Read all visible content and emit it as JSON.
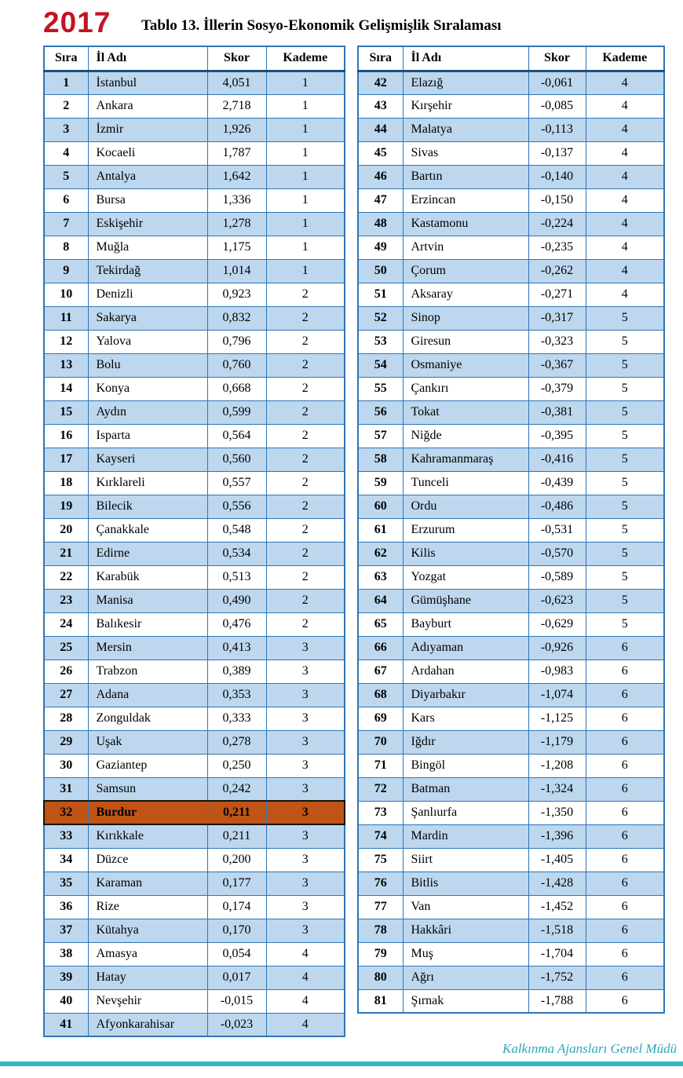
{
  "page": {
    "year": "2017",
    "title": "Tablo 13. İllerin Sosyo-Ekonomik Gelişmişlik Sıralaması",
    "footer_credit": "Kalkınma Ajansları Genel Müdü"
  },
  "colors": {
    "year_red": "#c31422",
    "table_border_blue": "#2e75b6",
    "shaded_row_blue": "#bdd7ee",
    "highlight_orange": "#c05316",
    "footer_teal": "#2aa9b8"
  },
  "columns": [
    "Sıra",
    "İl Adı",
    "Skor",
    "Kademe"
  ],
  "highlight_rank": 32,
  "left_rows": [
    [
      "1",
      "İstanbul",
      "4,051",
      "1"
    ],
    [
      "2",
      "Ankara",
      "2,718",
      "1"
    ],
    [
      "3",
      "İzmir",
      "1,926",
      "1"
    ],
    [
      "4",
      "Kocaeli",
      "1,787",
      "1"
    ],
    [
      "5",
      "Antalya",
      "1,642",
      "1"
    ],
    [
      "6",
      "Bursa",
      "1,336",
      "1"
    ],
    [
      "7",
      "Eskişehir",
      "1,278",
      "1"
    ],
    [
      "8",
      "Muğla",
      "1,175",
      "1"
    ],
    [
      "9",
      "Tekirdağ",
      "1,014",
      "1"
    ],
    [
      "10",
      "Denizli",
      "0,923",
      "2"
    ],
    [
      "11",
      "Sakarya",
      "0,832",
      "2"
    ],
    [
      "12",
      "Yalova",
      "0,796",
      "2"
    ],
    [
      "13",
      "Bolu",
      "0,760",
      "2"
    ],
    [
      "14",
      "Konya",
      "0,668",
      "2"
    ],
    [
      "15",
      "Aydın",
      "0,599",
      "2"
    ],
    [
      "16",
      "Isparta",
      "0,564",
      "2"
    ],
    [
      "17",
      "Kayseri",
      "0,560",
      "2"
    ],
    [
      "18",
      "Kırklareli",
      "0,557",
      "2"
    ],
    [
      "19",
      "Bilecik",
      "0,556",
      "2"
    ],
    [
      "20",
      "Çanakkale",
      "0,548",
      "2"
    ],
    [
      "21",
      "Edirne",
      "0,534",
      "2"
    ],
    [
      "22",
      "Karabük",
      "0,513",
      "2"
    ],
    [
      "23",
      "Manisa",
      "0,490",
      "2"
    ],
    [
      "24",
      "Balıkesir",
      "0,476",
      "2"
    ],
    [
      "25",
      "Mersin",
      "0,413",
      "3"
    ],
    [
      "26",
      "Trabzon",
      "0,389",
      "3"
    ],
    [
      "27",
      "Adana",
      "0,353",
      "3"
    ],
    [
      "28",
      "Zonguldak",
      "0,333",
      "3"
    ],
    [
      "29",
      "Uşak",
      "0,278",
      "3"
    ],
    [
      "30",
      "Gaziantep",
      "0,250",
      "3"
    ],
    [
      "31",
      "Samsun",
      "0,242",
      "3"
    ],
    [
      "32",
      "Burdur",
      "0,211",
      "3"
    ],
    [
      "33",
      "Kırıkkale",
      "0,211",
      "3"
    ],
    [
      "34",
      "Düzce",
      "0,200",
      "3"
    ],
    [
      "35",
      "Karaman",
      "0,177",
      "3"
    ],
    [
      "36",
      "Rize",
      "0,174",
      "3"
    ],
    [
      "37",
      "Kütahya",
      "0,170",
      "3"
    ],
    [
      "38",
      "Amasya",
      "0,054",
      "4"
    ],
    [
      "39",
      "Hatay",
      "0,017",
      "4"
    ],
    [
      "40",
      "Nevşehir",
      "-0,015",
      "4"
    ],
    [
      "41",
      "Afyonkarahisar",
      "-0,023",
      "4"
    ]
  ],
  "right_rows": [
    [
      "42",
      "Elazığ",
      "-0,061",
      "4"
    ],
    [
      "43",
      "Kırşehir",
      "-0,085",
      "4"
    ],
    [
      "44",
      "Malatya",
      "-0,113",
      "4"
    ],
    [
      "45",
      "Sivas",
      "-0,137",
      "4"
    ],
    [
      "46",
      "Bartın",
      "-0,140",
      "4"
    ],
    [
      "47",
      "Erzincan",
      "-0,150",
      "4"
    ],
    [
      "48",
      "Kastamonu",
      "-0,224",
      "4"
    ],
    [
      "49",
      "Artvin",
      "-0,235",
      "4"
    ],
    [
      "50",
      "Çorum",
      "-0,262",
      "4"
    ],
    [
      "51",
      "Aksaray",
      "-0,271",
      "4"
    ],
    [
      "52",
      "Sinop",
      "-0,317",
      "5"
    ],
    [
      "53",
      "Giresun",
      "-0,323",
      "5"
    ],
    [
      "54",
      "Osmaniye",
      "-0,367",
      "5"
    ],
    [
      "55",
      "Çankırı",
      "-0,379",
      "5"
    ],
    [
      "56",
      "Tokat",
      "-0,381",
      "5"
    ],
    [
      "57",
      "Niğde",
      "-0,395",
      "5"
    ],
    [
      "58",
      "Kahramanmaraş",
      "-0,416",
      "5"
    ],
    [
      "59",
      "Tunceli",
      "-0,439",
      "5"
    ],
    [
      "60",
      "Ordu",
      "-0,486",
      "5"
    ],
    [
      "61",
      "Erzurum",
      "-0,531",
      "5"
    ],
    [
      "62",
      "Kilis",
      "-0,570",
      "5"
    ],
    [
      "63",
      "Yozgat",
      "-0,589",
      "5"
    ],
    [
      "64",
      "Gümüşhane",
      "-0,623",
      "5"
    ],
    [
      "65",
      "Bayburt",
      "-0,629",
      "5"
    ],
    [
      "66",
      "Adıyaman",
      "-0,926",
      "6"
    ],
    [
      "67",
      "Ardahan",
      "-0,983",
      "6"
    ],
    [
      "68",
      "Diyarbakır",
      "-1,074",
      "6"
    ],
    [
      "69",
      "Kars",
      "-1,125",
      "6"
    ],
    [
      "70",
      "Iğdır",
      "-1,179",
      "6"
    ],
    [
      "71",
      "Bingöl",
      "-1,208",
      "6"
    ],
    [
      "72",
      "Batman",
      "-1,324",
      "6"
    ],
    [
      "73",
      "Şanlıurfa",
      "-1,350",
      "6"
    ],
    [
      "74",
      "Mardin",
      "-1,396",
      "6"
    ],
    [
      "75",
      "Siirt",
      "-1,405",
      "6"
    ],
    [
      "76",
      "Bitlis",
      "-1,428",
      "6"
    ],
    [
      "77",
      "Van",
      "-1,452",
      "6"
    ],
    [
      "78",
      "Hakkâri",
      "-1,518",
      "6"
    ],
    [
      "79",
      "Muş",
      "-1,704",
      "6"
    ],
    [
      "80",
      "Ağrı",
      "-1,752",
      "6"
    ],
    [
      "81",
      "Şırnak",
      "-1,788",
      "6"
    ]
  ]
}
